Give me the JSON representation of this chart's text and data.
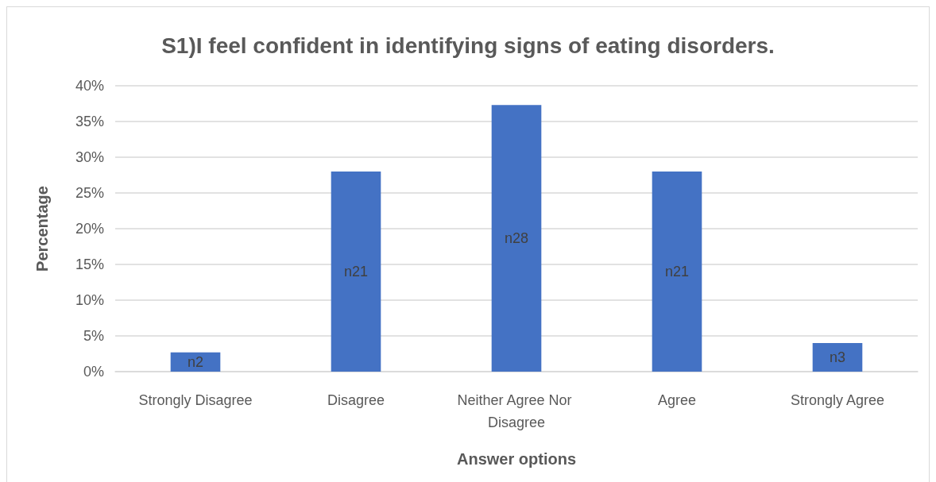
{
  "chart_data": {
    "type": "bar",
    "title": "S1)I feel confident in identifying signs of eating disorders.",
    "xlabel": "Answer options",
    "ylabel": "Percentage",
    "categories": [
      "Strongly Disagree",
      "Disagree",
      "Neither Agree Nor Disagree",
      "Agree",
      "Strongly Agree"
    ],
    "values": [
      2.7,
      28,
      37.3,
      28,
      4
    ],
    "value_labels": [
      "n2",
      "n21",
      "n28",
      "n21",
      "n3"
    ],
    "color": "#4472c4",
    "ylim": [
      0,
      40
    ],
    "yticks": [
      {
        "value": 0,
        "label": "0%"
      },
      {
        "value": 5,
        "label": "5%"
      },
      {
        "value": 10,
        "label": "10%"
      },
      {
        "value": 15,
        "label": "15%"
      },
      {
        "value": 20,
        "label": "20%"
      },
      {
        "value": 25,
        "label": "25%"
      },
      {
        "value": 30,
        "label": "30%"
      },
      {
        "value": 35,
        "label": "35%"
      },
      {
        "value": 40,
        "label": "40%"
      }
    ],
    "grid": "y"
  }
}
